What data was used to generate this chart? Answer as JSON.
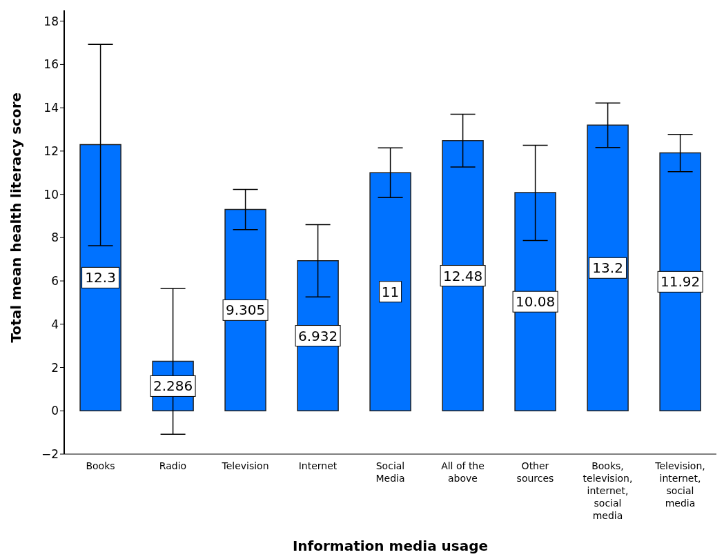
{
  "chart_data": {
    "type": "bar",
    "xlabel": "Information media usage",
    "ylabel": "Total mean health literacy score",
    "categories": [
      "Books",
      "Radio",
      "Television",
      "Internet",
      "Social Media",
      "All of the above",
      "Other sources",
      "Books, television, internet, social media",
      "Television, internet, social media"
    ],
    "values": [
      12.3,
      2.286,
      9.305,
      6.932,
      11,
      12.48,
      10.08,
      13.2,
      11.92
    ],
    "errors": [
      [
        7.63,
        16.93
      ],
      [
        -1.08,
        5.65
      ],
      [
        8.37,
        10.23
      ],
      [
        5.26,
        8.6
      ],
      [
        9.85,
        12.15
      ],
      [
        11.26,
        13.7
      ],
      [
        7.87,
        12.27
      ],
      [
        12.16,
        14.22
      ],
      [
        11.05,
        12.77
      ]
    ],
    "color": "#0072ff",
    "data_labels": true,
    "grid": false,
    "legend": false,
    "ylim": [
      -2,
      18.5
    ],
    "yticks": [
      -2,
      0,
      2,
      4,
      6,
      8,
      10,
      12,
      14,
      16,
      18
    ]
  }
}
